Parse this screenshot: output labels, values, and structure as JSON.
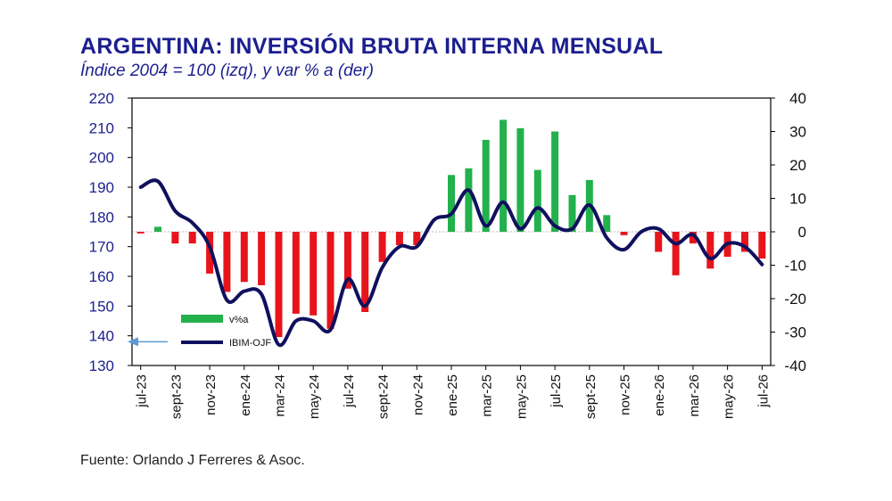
{
  "header": {
    "title": "ARGENTINA: INVERSIÓN BRUTA INTERNA MENSUAL",
    "subtitle": "Índice 2004 = 100 (izq), y var % a (der)"
  },
  "footer": {
    "source": "Fuente: Orlando J Ferreres & Asoc."
  },
  "colors": {
    "line": "#10105e",
    "bar_positive": "#22b14c",
    "bar_negative": "#e8141b",
    "arrow": "#5b9bd5"
  },
  "chart_data": {
    "type": "bar+line",
    "title": "ARGENTINA: INVERSIÓN BRUTA INTERNA MENSUAL",
    "subtitle": "Índice 2004 = 100 (izq), y var % a (der)",
    "categories": [
      "jul-23",
      "ago-23",
      "sept-23",
      "oct-23",
      "nov-23",
      "dic-23",
      "ene-24",
      "feb-24",
      "mar-24",
      "abr-24",
      "may-24",
      "jun-24",
      "jul-24",
      "ago-24",
      "sept-24",
      "oct-24",
      "nov-24",
      "dic-24",
      "ene-25",
      "feb-25",
      "mar-25",
      "abr-25",
      "may-25",
      "jun-25",
      "jul-25",
      "ago-25",
      "sept-25",
      "oct-25",
      "nov-25",
      "dic-25",
      "ene-26",
      "feb-26",
      "mar-26",
      "abr-26",
      "may-26",
      "jun-26",
      "jul-26"
    ],
    "xtick_labels": [
      "jul-23",
      "sept-23",
      "nov-23",
      "ene-24",
      "mar-24",
      "may-24",
      "jul-24",
      "sept-24",
      "nov-24",
      "ene-25",
      "mar-25",
      "may-25",
      "jul-25",
      "sept-25",
      "nov-25",
      "ene-26",
      "mar-26",
      "may-26",
      "jul-26"
    ],
    "xtick_indices": [
      0,
      2,
      4,
      6,
      8,
      10,
      12,
      14,
      16,
      18,
      20,
      22,
      24,
      26,
      28,
      30,
      32,
      34,
      36
    ],
    "y_left": {
      "ylim": [
        130,
        220
      ],
      "ticks": [
        130,
        140,
        150,
        160,
        170,
        180,
        190,
        200,
        210,
        220
      ]
    },
    "y_right": {
      "ylim": [
        -40,
        40
      ],
      "ticks": [
        -40,
        -30,
        -20,
        -10,
        0,
        10,
        20,
        30,
        40
      ]
    },
    "series": [
      {
        "name": "v%a",
        "type": "bar",
        "axis": "right",
        "values": [
          -0.5,
          1.5,
          -3.5,
          -3.5,
          -12.5,
          -18,
          -15,
          -16,
          -31.5,
          -24.5,
          -25,
          -29,
          -17,
          -24,
          -9,
          -4,
          -4,
          0,
          17,
          19,
          27.5,
          33.5,
          31,
          18.5,
          30,
          11,
          15.5,
          5,
          -1,
          0,
          -6,
          -13,
          -3.5,
          -11,
          -7.5,
          -6,
          -8
        ]
      },
      {
        "name": "IBIM-OJF",
        "type": "line",
        "axis": "left",
        "values": [
          190,
          192,
          182,
          178,
          170,
          152,
          155,
          154,
          137,
          145,
          145,
          142,
          159,
          150,
          163,
          170,
          170,
          179,
          181,
          189,
          177,
          185,
          176,
          183,
          177,
          176,
          184,
          173,
          169,
          175,
          176,
          171,
          174,
          166,
          171,
          170,
          164
        ]
      }
    ],
    "legend": {
      "position": "inside-left"
    },
    "annotation": {
      "type": "arrow",
      "axis": "left",
      "value": 138
    },
    "grid": false
  }
}
